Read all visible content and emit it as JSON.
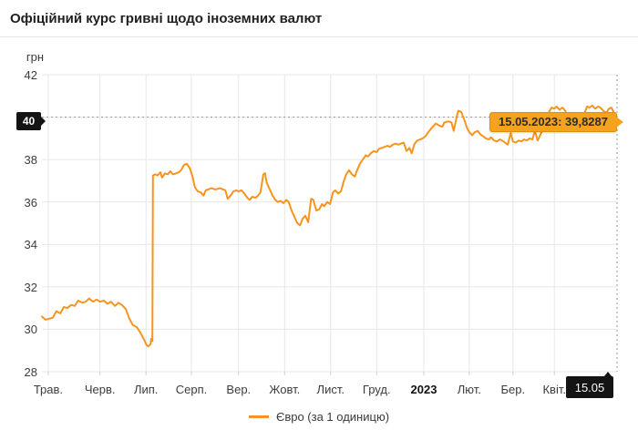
{
  "header": {
    "title": "Офіційний курс гривні щодо іноземних валют"
  },
  "colors": {
    "line": "#f7941d",
    "tooltip_bg": "#f5a21e",
    "tooltip_border": "#dd8f12",
    "marker_bg": "#141414",
    "grid": "#e7e7e7",
    "dash": "#9a9a9a",
    "tick": "#cfcfcf"
  },
  "chart_data": {
    "type": "line",
    "title": "Офіційний курс гривні щодо іноземних валют",
    "ylabel": "грн",
    "xlabel": "",
    "ylim": [
      28,
      42
    ],
    "grid": true,
    "legend_position": "bottom-center",
    "y_ticks": [
      42,
      40,
      38,
      36,
      34,
      32,
      30,
      28
    ],
    "x_ticks": [
      {
        "label": "Трав.",
        "t": 0.011,
        "bold": false
      },
      {
        "label": "Черв.",
        "t": 0.101,
        "bold": false
      },
      {
        "label": "Лип.",
        "t": 0.181,
        "bold": false
      },
      {
        "label": "Серп.",
        "t": 0.26,
        "bold": false
      },
      {
        "label": "Вер.",
        "t": 0.342,
        "bold": false
      },
      {
        "label": "Жовт.",
        "t": 0.422,
        "bold": false
      },
      {
        "label": "Лист.",
        "t": 0.502,
        "bold": false
      },
      {
        "label": "Груд.",
        "t": 0.582,
        "bold": false
      },
      {
        "label": "2023",
        "t": 0.664,
        "bold": true
      },
      {
        "label": "Лют.",
        "t": 0.743,
        "bold": false
      },
      {
        "label": "Бер.",
        "t": 0.819,
        "bold": false
      },
      {
        "label": "Квіт.",
        "t": 0.891,
        "bold": false
      }
    ],
    "target_line": {
      "value": 40,
      "label": "40"
    },
    "current_marker": {
      "axis_label": "15.05",
      "date": "15.05.2023",
      "value": 39.8287,
      "value_text": "39,8287",
      "tooltip": "15.05.2023: 39,8287",
      "t": 1.0
    },
    "series": [
      {
        "name": "Євро (за 1 одиницю)",
        "color": "#f7941d",
        "points": [
          [
            0.0,
            30.6
          ],
          [
            0.006,
            30.45
          ],
          [
            0.013,
            30.5
          ],
          [
            0.019,
            30.55
          ],
          [
            0.025,
            30.85
          ],
          [
            0.032,
            30.75
          ],
          [
            0.038,
            31.05
          ],
          [
            0.044,
            31.0
          ],
          [
            0.051,
            31.15
          ],
          [
            0.057,
            31.1
          ],
          [
            0.063,
            31.35
          ],
          [
            0.07,
            31.25
          ],
          [
            0.076,
            31.3
          ],
          [
            0.082,
            31.45
          ],
          [
            0.089,
            31.3
          ],
          [
            0.095,
            31.4
          ],
          [
            0.101,
            31.3
          ],
          [
            0.108,
            31.35
          ],
          [
            0.114,
            31.2
          ],
          [
            0.12,
            31.3
          ],
          [
            0.127,
            31.1
          ],
          [
            0.133,
            31.25
          ],
          [
            0.139,
            31.15
          ],
          [
            0.146,
            30.95
          ],
          [
            0.152,
            30.5
          ],
          [
            0.158,
            30.2
          ],
          [
            0.165,
            30.1
          ],
          [
            0.171,
            29.85
          ],
          [
            0.178,
            29.5
          ],
          [
            0.182,
            29.25
          ],
          [
            0.185,
            29.2
          ],
          [
            0.189,
            29.3
          ],
          [
            0.19,
            29.55
          ],
          [
            0.192,
            29.45
          ],
          [
            0.193,
            37.25
          ],
          [
            0.197,
            37.3
          ],
          [
            0.201,
            37.25
          ],
          [
            0.206,
            37.4
          ],
          [
            0.209,
            37.15
          ],
          [
            0.214,
            37.35
          ],
          [
            0.219,
            37.3
          ],
          [
            0.223,
            37.45
          ],
          [
            0.228,
            37.3
          ],
          [
            0.233,
            37.35
          ],
          [
            0.238,
            37.4
          ],
          [
            0.242,
            37.5
          ],
          [
            0.247,
            37.75
          ],
          [
            0.252,
            37.8
          ],
          [
            0.257,
            37.6
          ],
          [
            0.262,
            37.2
          ],
          [
            0.266,
            36.7
          ],
          [
            0.271,
            36.5
          ],
          [
            0.276,
            36.45
          ],
          [
            0.281,
            36.3
          ],
          [
            0.285,
            36.55
          ],
          [
            0.29,
            36.6
          ],
          [
            0.295,
            36.65
          ],
          [
            0.3,
            36.6
          ],
          [
            0.304,
            36.6
          ],
          [
            0.309,
            36.65
          ],
          [
            0.314,
            36.6
          ],
          [
            0.319,
            36.55
          ],
          [
            0.323,
            36.15
          ],
          [
            0.328,
            36.3
          ],
          [
            0.333,
            36.5
          ],
          [
            0.338,
            36.55
          ],
          [
            0.342,
            36.5
          ],
          [
            0.347,
            36.55
          ],
          [
            0.352,
            36.4
          ],
          [
            0.357,
            36.2
          ],
          [
            0.361,
            36.1
          ],
          [
            0.366,
            36.25
          ],
          [
            0.371,
            36.2
          ],
          [
            0.376,
            36.3
          ],
          [
            0.38,
            36.45
          ],
          [
            0.385,
            37.3
          ],
          [
            0.388,
            37.35
          ],
          [
            0.391,
            36.9
          ],
          [
            0.396,
            36.6
          ],
          [
            0.401,
            36.3
          ],
          [
            0.406,
            36.1
          ],
          [
            0.41,
            36.0
          ],
          [
            0.415,
            36.05
          ],
          [
            0.42,
            35.95
          ],
          [
            0.425,
            36.1
          ],
          [
            0.429,
            36.0
          ],
          [
            0.434,
            35.6
          ],
          [
            0.439,
            35.3
          ],
          [
            0.444,
            35.0
          ],
          [
            0.449,
            34.9
          ],
          [
            0.453,
            35.2
          ],
          [
            0.458,
            35.35
          ],
          [
            0.463,
            35.05
          ],
          [
            0.468,
            36.15
          ],
          [
            0.472,
            36.1
          ],
          [
            0.477,
            35.6
          ],
          [
            0.482,
            35.65
          ],
          [
            0.487,
            35.9
          ],
          [
            0.491,
            35.8
          ],
          [
            0.496,
            36.0
          ],
          [
            0.501,
            35.9
          ],
          [
            0.506,
            36.45
          ],
          [
            0.51,
            36.55
          ],
          [
            0.515,
            36.4
          ],
          [
            0.52,
            36.5
          ],
          [
            0.525,
            37.0
          ],
          [
            0.529,
            37.3
          ],
          [
            0.534,
            37.5
          ],
          [
            0.539,
            37.3
          ],
          [
            0.544,
            37.2
          ],
          [
            0.548,
            37.5
          ],
          [
            0.553,
            37.8
          ],
          [
            0.558,
            38.0
          ],
          [
            0.563,
            38.2
          ],
          [
            0.567,
            38.15
          ],
          [
            0.572,
            38.3
          ],
          [
            0.577,
            38.4
          ],
          [
            0.582,
            38.35
          ],
          [
            0.586,
            38.5
          ],
          [
            0.591,
            38.55
          ],
          [
            0.596,
            38.6
          ],
          [
            0.601,
            38.65
          ],
          [
            0.605,
            38.6
          ],
          [
            0.61,
            38.7
          ],
          [
            0.615,
            38.75
          ],
          [
            0.62,
            38.7
          ],
          [
            0.624,
            38.75
          ],
          [
            0.629,
            38.8
          ],
          [
            0.634,
            38.4
          ],
          [
            0.639,
            38.55
          ],
          [
            0.643,
            38.3
          ],
          [
            0.648,
            38.75
          ],
          [
            0.653,
            38.9
          ],
          [
            0.658,
            38.95
          ],
          [
            0.662,
            39.0
          ],
          [
            0.667,
            39.1
          ],
          [
            0.672,
            39.3
          ],
          [
            0.678,
            39.5
          ],
          [
            0.685,
            39.7
          ],
          [
            0.691,
            39.6
          ],
          [
            0.696,
            39.55
          ],
          [
            0.7,
            39.75
          ],
          [
            0.707,
            39.8
          ],
          [
            0.712,
            39.75
          ],
          [
            0.716,
            39.35
          ],
          [
            0.721,
            40.0
          ],
          [
            0.724,
            40.3
          ],
          [
            0.729,
            40.25
          ],
          [
            0.734,
            39.9
          ],
          [
            0.739,
            39.5
          ],
          [
            0.743,
            39.3
          ],
          [
            0.748,
            39.15
          ],
          [
            0.753,
            39.3
          ],
          [
            0.758,
            39.35
          ],
          [
            0.762,
            39.2
          ],
          [
            0.767,
            39.1
          ],
          [
            0.772,
            39.0
          ],
          [
            0.777,
            38.95
          ],
          [
            0.781,
            39.05
          ],
          [
            0.786,
            38.9
          ],
          [
            0.791,
            38.85
          ],
          [
            0.796,
            38.95
          ],
          [
            0.8,
            38.9
          ],
          [
            0.805,
            38.8
          ],
          [
            0.81,
            38.7
          ],
          [
            0.815,
            39.25
          ],
          [
            0.819,
            38.85
          ],
          [
            0.824,
            38.8
          ],
          [
            0.829,
            38.9
          ],
          [
            0.834,
            38.85
          ],
          [
            0.838,
            38.95
          ],
          [
            0.843,
            38.9
          ],
          [
            0.848,
            39.0
          ],
          [
            0.853,
            38.95
          ],
          [
            0.857,
            39.35
          ],
          [
            0.862,
            38.9
          ],
          [
            0.869,
            39.3
          ],
          [
            0.875,
            39.8
          ],
          [
            0.881,
            40.2
          ],
          [
            0.886,
            40.45
          ],
          [
            0.891,
            40.4
          ],
          [
            0.895,
            40.5
          ],
          [
            0.9,
            40.35
          ],
          [
            0.905,
            40.45
          ],
          [
            0.91,
            40.3
          ],
          [
            0.915,
            39.9
          ],
          [
            0.919,
            39.7
          ],
          [
            0.924,
            39.9
          ],
          [
            0.929,
            40.1
          ],
          [
            0.933,
            40.05
          ],
          [
            0.938,
            40.2
          ],
          [
            0.943,
            40.15
          ],
          [
            0.948,
            40.5
          ],
          [
            0.952,
            40.45
          ],
          [
            0.957,
            40.55
          ],
          [
            0.962,
            40.4
          ],
          [
            0.967,
            40.5
          ],
          [
            0.971,
            40.45
          ],
          [
            0.976,
            40.3
          ],
          [
            0.981,
            40.2
          ],
          [
            0.986,
            40.4
          ],
          [
            0.99,
            40.45
          ],
          [
            0.995,
            40.2
          ],
          [
            1.0,
            39.83
          ]
        ]
      }
    ]
  }
}
